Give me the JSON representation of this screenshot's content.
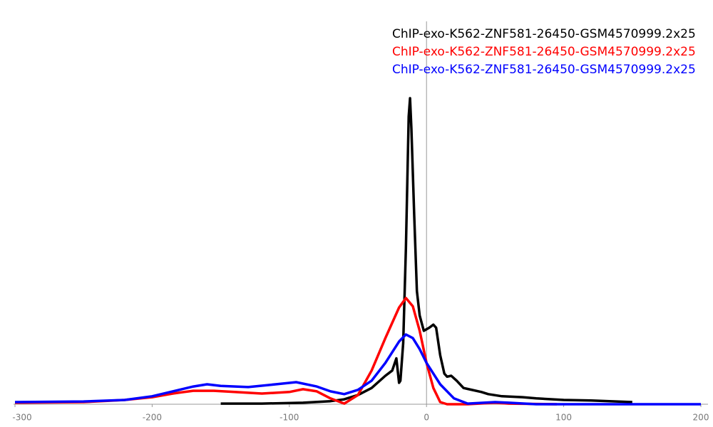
{
  "chart_data": {
    "type": "line",
    "xlim": [
      -300,
      200
    ],
    "xticks": [
      -300,
      -200,
      -100,
      0,
      100,
      200
    ],
    "ylim": [
      0,
      110
    ],
    "series": [
      {
        "name": "ChIP-exo-K562-ZNF581-26450-GSM4570999.2x25",
        "color": "#000000",
        "x": [
          -150,
          -120,
          -90,
          -70,
          -60,
          -50,
          -40,
          -30,
          -25,
          -22,
          -20,
          -19,
          -17,
          -15,
          -13,
          -12,
          -11,
          -9,
          -7,
          -5,
          -2,
          2,
          5,
          7,
          10,
          13,
          15,
          18,
          22,
          27,
          30,
          40,
          45,
          55,
          70,
          80,
          100,
          120,
          150
        ],
        "values": [
          0.2,
          0.2,
          0.5,
          1,
          1.6,
          3,
          5.3,
          9.3,
          11,
          15,
          7,
          7.7,
          20,
          51,
          94,
          100,
          90,
          62,
          37,
          29,
          24,
          25,
          26,
          25,
          16,
          10,
          9,
          9.3,
          7.7,
          5.3,
          5,
          4,
          3.3,
          2.6,
          2.3,
          1.9,
          1.4,
          1.2,
          0.7
        ]
      },
      {
        "name": "ChIP-exo-K562-ZNF581-26450-GSM4570999.2x25",
        "color": "#ff0000",
        "x": [
          -300,
          -250,
          -220,
          -200,
          -185,
          -170,
          -155,
          -140,
          -120,
          -100,
          -90,
          -80,
          -70,
          -60,
          -50,
          -40,
          -30,
          -20,
          -15,
          -10,
          -5,
          0,
          5,
          10,
          15,
          30,
          50,
          60,
          95
        ],
        "values": [
          0.5,
          0.7,
          1.4,
          2.3,
          3.5,
          4.4,
          4.4,
          4,
          3.5,
          4,
          4.9,
          4.2,
          1.9,
          0.2,
          3,
          11,
          21.6,
          31.6,
          34.7,
          32,
          24,
          13.5,
          5.3,
          0.7,
          0,
          0,
          0.5,
          0.2,
          0
        ]
      },
      {
        "name": "ChIP-exo-K562-ZNF581-26450-GSM4570999.2x25",
        "color": "#0000ff",
        "x": [
          -300,
          -250,
          -220,
          -200,
          -185,
          -170,
          -160,
          -150,
          -130,
          -110,
          -95,
          -80,
          -70,
          -60,
          -50,
          -40,
          -30,
          -20,
          -15,
          -10,
          -5,
          0,
          10,
          20,
          30,
          50,
          60,
          80,
          120,
          200
        ],
        "values": [
          0.7,
          0.9,
          1.4,
          2.6,
          4.2,
          5.8,
          6.5,
          6,
          5.6,
          6.5,
          7.2,
          5.8,
          4.2,
          3.3,
          4.7,
          7.7,
          13.5,
          20.5,
          22.8,
          21.6,
          18,
          13.5,
          6.5,
          1.9,
          0.2,
          0.7,
          0.5,
          0,
          0,
          0
        ]
      }
    ]
  }
}
